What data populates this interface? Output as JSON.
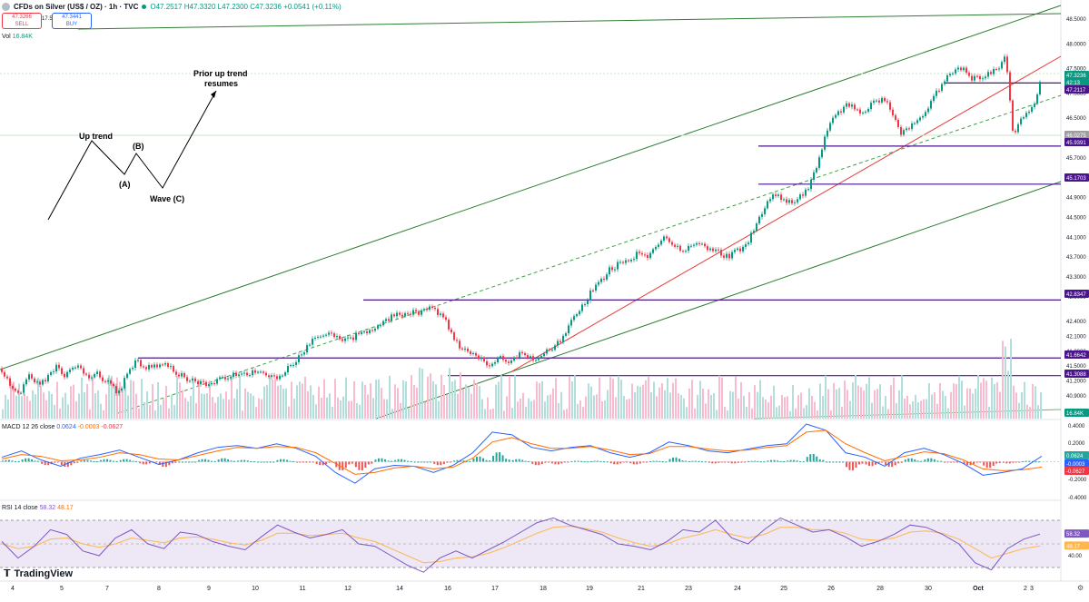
{
  "header": {
    "symbol": "CFDs on Silver (US$ / OZ) · 1h · TVC",
    "ohlc": "O47.2517 H47.3320 L47.2300 C47.3236 +0.0541 (+0.11%)",
    "sell_price": "47.3266",
    "sell_label": "SELL",
    "spread": "17.5",
    "buy_price": "47.3441",
    "buy_label": "BUY",
    "volume_label": "Vol",
    "volume_value": "16.84K"
  },
  "annotation": {
    "prior_up_trend": "Prior up trend",
    "resumes": "resumes",
    "up_trend": "Up trend",
    "b": "(B)",
    "a": "(A)",
    "wave_c": "Wave (C)"
  },
  "macd_label": {
    "name": "MACD 12 26 close",
    "v1": "0.0624",
    "v2": "-0.0003",
    "v3": "-0.0627"
  },
  "rsi_label": {
    "name": "RSI 14 close",
    "v1": "58.32",
    "v2": "48.17"
  },
  "logo": "TradingView",
  "colors": {
    "up": "#089981",
    "down": "#f23645",
    "purple": "#4a148c",
    "trend_green": "#2e7d32",
    "macd": "#2962ff",
    "signal": "#ff6d00",
    "rsi": "#7e57c2"
  },
  "chart_data": [
    {
      "type": "candlestick",
      "price_axis_ticks": [
        "48.5000",
        "48.0000",
        "47.5000",
        "47.0000",
        "46.5000",
        "46.0000",
        "45.7000",
        "45.3000",
        "44.9000",
        "44.5000",
        "44.1000",
        "43.7000",
        "43.3000",
        "42.9000",
        "42.4000",
        "42.1000",
        "41.8000",
        "41.5000",
        "41.2000",
        "40.9000"
      ],
      "price_labels": [
        {
          "value": "47.3236",
          "color": "#089981"
        },
        {
          "value": "42:13",
          "color": "#089981"
        },
        {
          "value": "47.2117",
          "color": "#4a148c"
        },
        {
          "value": "46.0275",
          "color": "#9e9e9e"
        },
        {
          "value": "45.9391",
          "color": "#4a148c"
        },
        {
          "value": "45.1703",
          "color": "#4a148c"
        },
        {
          "value": "42.8347",
          "color": "#4a148c"
        },
        {
          "value": "41.6642",
          "color": "#4a148c"
        },
        {
          "value": "41.3088",
          "color": "#4a148c"
        },
        {
          "value": "16.84K",
          "color": "#089981"
        }
      ],
      "horizontal_levels": [
        47.2117,
        45.9391,
        45.1703,
        42.8347,
        41.6642,
        41.3088
      ],
      "x_axis_labels": [
        "4",
        "5",
        "7",
        "8",
        "9",
        "10",
        "11",
        "12",
        "14",
        "16",
        "17",
        "18",
        "19",
        "21",
        "23",
        "24",
        "25",
        "26",
        "28",
        "30",
        "Oct",
        "2",
        "3"
      ],
      "close_path": [
        [
          0,
          41.45
        ],
        [
          8,
          41.2
        ],
        [
          16,
          41.0
        ],
        [
          22,
          40.95
        ],
        [
          30,
          41.3
        ],
        [
          40,
          41.15
        ],
        [
          50,
          41.25
        ],
        [
          60,
          41.5
        ],
        [
          68,
          41.3
        ],
        [
          76,
          41.4
        ],
        [
          85,
          41.55
        ],
        [
          95,
          41.3
        ],
        [
          105,
          41.35
        ],
        [
          115,
          41.2
        ],
        [
          122,
          41.1
        ],
        [
          130,
          40.95
        ],
        [
          140,
          41.4
        ],
        [
          150,
          41.6
        ],
        [
          160,
          41.45
        ],
        [
          170,
          41.5
        ],
        [
          180,
          41.55
        ],
        [
          190,
          41.4
        ],
        [
          200,
          41.3
        ],
        [
          210,
          41.2
        ],
        [
          220,
          41.15
        ],
        [
          230,
          41.1
        ],
        [
          240,
          41.25
        ],
        [
          250,
          41.3
        ],
        [
          260,
          41.35
        ],
        [
          270,
          41.3
        ],
        [
          280,
          41.4
        ],
        [
          290,
          41.35
        ],
        [
          300,
          41.25
        ],
        [
          310,
          41.3
        ],
        [
          320,
          41.55
        ],
        [
          330,
          41.7
        ],
        [
          340,
          41.95
        ],
        [
          350,
          42.1
        ],
        [
          360,
          42.15
        ],
        [
          370,
          42.05
        ],
        [
          380,
          42.0
        ],
        [
          390,
          42.1
        ],
        [
          400,
          42.2
        ],
        [
          410,
          42.25
        ],
        [
          420,
          42.4
        ],
        [
          430,
          42.5
        ],
        [
          440,
          42.55
        ],
        [
          450,
          42.6
        ],
        [
          460,
          42.55
        ],
        [
          470,
          42.7
        ],
        [
          480,
          42.6
        ],
        [
          490,
          42.4
        ],
        [
          500,
          42.0
        ],
        [
          510,
          41.8
        ],
        [
          520,
          41.75
        ],
        [
          530,
          41.6
        ],
        [
          540,
          41.55
        ],
        [
          550,
          41.7
        ],
        [
          560,
          41.6
        ],
        [
          570,
          41.75
        ],
        [
          580,
          41.7
        ],
        [
          590,
          41.65
        ],
        [
          600,
          41.8
        ],
        [
          610,
          41.9
        ],
        [
          620,
          42.1
        ],
        [
          630,
          42.45
        ],
        [
          640,
          42.7
        ],
        [
          650,
          43.0
        ],
        [
          660,
          43.2
        ],
        [
          670,
          43.45
        ],
        [
          680,
          43.55
        ],
        [
          690,
          43.6
        ],
        [
          700,
          43.75
        ],
        [
          710,
          43.7
        ],
        [
          720,
          43.9
        ],
        [
          730,
          44.1
        ],
        [
          740,
          43.95
        ],
        [
          750,
          43.8
        ],
        [
          760,
          43.9
        ],
        [
          770,
          44.0
        ],
        [
          780,
          43.85
        ],
        [
          790,
          43.8
        ],
        [
          800,
          43.7
        ],
        [
          810,
          43.85
        ],
        [
          820,
          43.9
        ],
        [
          830,
          44.3
        ],
        [
          840,
          44.7
        ],
        [
          850,
          45.0
        ],
        [
          860,
          44.9
        ],
        [
          870,
          44.8
        ],
        [
          880,
          44.95
        ],
        [
          890,
          45.1
        ],
        [
          900,
          45.6
        ],
        [
          910,
          46.3
        ],
        [
          920,
          46.6
        ],
        [
          930,
          46.75
        ],
        [
          940,
          46.7
        ],
        [
          950,
          46.6
        ],
        [
          960,
          46.8
        ],
        [
          970,
          46.9
        ],
        [
          980,
          46.7
        ],
        [
          990,
          46.2
        ],
        [
          1000,
          46.3
        ],
        [
          1010,
          46.45
        ],
        [
          1020,
          46.7
        ],
        [
          1030,
          47.0
        ],
        [
          1040,
          47.3
        ],
        [
          1050,
          47.45
        ],
        [
          1060,
          47.5
        ],
        [
          1070,
          47.3
        ],
        [
          1080,
          47.35
        ],
        [
          1090,
          47.4
        ],
        [
          1100,
          47.55
        ],
        [
          1105,
          47.8
        ],
        [
          1110,
          47.1
        ],
        [
          1115,
          46.05
        ],
        [
          1120,
          46.4
        ],
        [
          1130,
          46.6
        ],
        [
          1140,
          46.9
        ],
        [
          1145,
          47.3236
        ]
      ]
    },
    {
      "type": "line",
      "name": "MACD 12 26 close",
      "y_axis_ticks": [
        "0.4000",
        "0.2000",
        "0.0624",
        "-0.0003",
        "-0.0627",
        "-0.2000",
        "-0.4000"
      ],
      "series": [
        {
          "name": "MACD",
          "values": [
            0.05,
            0.12,
            0.02,
            -0.05,
            0.04,
            0.08,
            0.13,
            0.05,
            -0.03,
            0.02,
            0.1,
            0.16,
            0.18,
            0.15,
            0.2,
            0.15,
            0.06,
            -0.12,
            -0.24,
            -0.08,
            -0.04,
            -0.05,
            -0.12,
            -0.04,
            0.1,
            0.33,
            0.3,
            0.16,
            0.12,
            0.16,
            0.18,
            0.1,
            0.05,
            0.1,
            0.22,
            0.18,
            0.12,
            0.1,
            0.14,
            0.18,
            0.2,
            0.42,
            0.35,
            0.1,
            0.05,
            -0.05,
            0.1,
            0.15,
            0.08,
            -0.02,
            -0.15,
            -0.12,
            -0.08,
            0.062
          ]
        },
        {
          "name": "Signal",
          "values": [
            0.03,
            0.08,
            0.06,
            0.01,
            0.02,
            0.05,
            0.1,
            0.08,
            0.03,
            0.02,
            0.07,
            0.12,
            0.16,
            0.15,
            0.17,
            0.16,
            0.1,
            -0.02,
            -0.14,
            -0.12,
            -0.07,
            -0.05,
            -0.08,
            -0.06,
            0.04,
            0.22,
            0.27,
            0.2,
            0.15,
            0.15,
            0.17,
            0.13,
            0.08,
            0.09,
            0.17,
            0.17,
            0.14,
            0.12,
            0.13,
            0.16,
            0.18,
            0.33,
            0.35,
            0.2,
            0.1,
            0.01,
            0.06,
            0.11,
            0.09,
            0.02,
            -0.08,
            -0.1,
            -0.09,
            -0.06
          ]
        }
      ]
    },
    {
      "type": "line",
      "name": "RSI 14 close",
      "y_axis_ticks": [
        "58.32",
        "48.17",
        "40.00"
      ],
      "series": [
        {
          "name": "RSI",
          "values": [
            52,
            38,
            48,
            62,
            58,
            44,
            40,
            55,
            62,
            50,
            46,
            60,
            58,
            52,
            48,
            45,
            56,
            66,
            60,
            55,
            58,
            62,
            50,
            48,
            40,
            32,
            26,
            38,
            44,
            38,
            45,
            52,
            60,
            68,
            72,
            66,
            62,
            58,
            50,
            48,
            45,
            52,
            62,
            60,
            70,
            55,
            50,
            62,
            72,
            66,
            60,
            62,
            56,
            48,
            52,
            58,
            66,
            64,
            58,
            50,
            34,
            28,
            46,
            54,
            58.32
          ]
        },
        {
          "name": "RSI MA",
          "values": [
            50,
            46,
            48,
            54,
            55,
            50,
            47,
            50,
            55,
            53,
            51,
            55,
            56,
            54,
            51,
            49,
            53,
            59,
            59,
            57,
            58,
            59,
            55,
            52,
            46,
            40,
            34,
            35,
            38,
            39,
            42,
            47,
            53,
            59,
            64,
            65,
            63,
            60,
            55,
            51,
            48,
            50,
            55,
            58,
            62,
            58,
            55,
            58,
            64,
            64,
            62,
            62,
            59,
            54,
            53,
            55,
            60,
            61,
            59,
            54,
            46,
            38,
            42,
            46,
            48.17
          ]
        }
      ]
    }
  ]
}
